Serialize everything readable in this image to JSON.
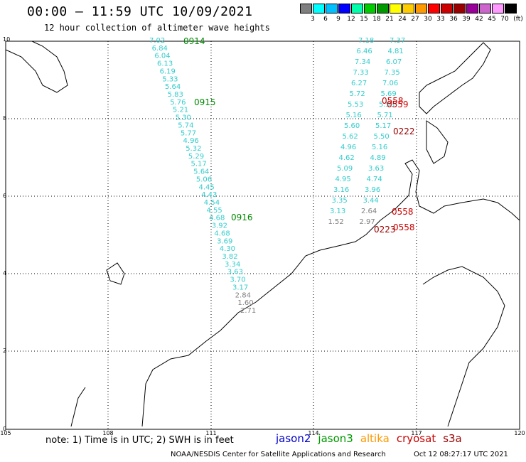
{
  "title": "00:00 – 11:59 UTC 10/09/2021",
  "subtitle": "12 hour collection of altimeter wave heights",
  "legend": {
    "colors": [
      "#7f7f7f",
      "#00ffff",
      "#00bfff",
      "#0000ff",
      "#00ffaa",
      "#00cc00",
      "#009900",
      "#ffff00",
      "#ffcc00",
      "#ff9900",
      "#ff0000",
      "#cc0000",
      "#990000",
      "#990099",
      "#cc66cc",
      "#ff99ff",
      "#000000"
    ],
    "labels": [
      "3",
      "6",
      "9",
      "12",
      "15",
      "18",
      "21",
      "24",
      "27",
      "30",
      "33",
      "36",
      "39",
      "42",
      "45",
      "70"
    ],
    "unit": "(ft)"
  },
  "axes": {
    "lat_labels": [
      "10",
      "8",
      "6",
      "4",
      "2",
      "0"
    ],
    "lon_labels": [
      "105",
      "108",
      "111",
      "114",
      "117",
      "120"
    ]
  },
  "tracks": [
    {
      "name": "track-1",
      "values": [
        {
          "v": "7.02",
          "c": "#33cccc"
        },
        {
          "v": "6.84",
          "c": "#33cccc"
        },
        {
          "v": "6.04",
          "c": "#33cccc"
        },
        {
          "v": "6.13",
          "c": "#33cccc"
        },
        {
          "v": "6.19",
          "c": "#33cccc"
        },
        {
          "v": "5.33",
          "c": "#33cccc"
        },
        {
          "v": "5.64",
          "c": "#33cccc"
        },
        {
          "v": "5.83",
          "c": "#33cccc"
        },
        {
          "v": "5.76",
          "c": "#33cccc"
        },
        {
          "v": "5.21",
          "c": "#33cccc"
        },
        {
          "v": "5.30",
          "c": "#33cccc"
        },
        {
          "v": "5.74",
          "c": "#33cccc"
        },
        {
          "v": "5.77",
          "c": "#33cccc"
        },
        {
          "v": "4.96",
          "c": "#33cccc"
        },
        {
          "v": "5.32",
          "c": "#33cccc"
        },
        {
          "v": "5.29",
          "c": "#33cccc"
        },
        {
          "v": "5.17",
          "c": "#33cccc"
        },
        {
          "v": "5.64",
          "c": "#33cccc"
        },
        {
          "v": "5.06",
          "c": "#33cccc"
        },
        {
          "v": "4.45",
          "c": "#33cccc"
        },
        {
          "v": "4.43",
          "c": "#33cccc"
        },
        {
          "v": "4.54",
          "c": "#33cccc"
        },
        {
          "v": "4.55",
          "c": "#33cccc"
        },
        {
          "v": "4.68",
          "c": "#33cccc"
        },
        {
          "v": "3.92",
          "c": "#33cccc"
        },
        {
          "v": "4.68",
          "c": "#33cccc"
        },
        {
          "v": "3.69",
          "c": "#33cccc"
        },
        {
          "v": "4.30",
          "c": "#33cccc"
        },
        {
          "v": "3.82",
          "c": "#33cccc"
        },
        {
          "v": "3.34",
          "c": "#33cccc"
        },
        {
          "v": "3.63",
          "c": "#33cccc"
        },
        {
          "v": "3.70",
          "c": "#33cccc"
        },
        {
          "v": "3.17",
          "c": "#33cccc"
        },
        {
          "v": "2.84",
          "c": "#808080"
        },
        {
          "v": "1.60",
          "c": "#808080"
        },
        {
          "v": "2.71",
          "c": "#808080"
        }
      ]
    },
    {
      "name": "track-2",
      "values": [
        {
          "v": "7.37",
          "c": "#33cccc"
        },
        {
          "v": "7.18",
          "c": "#33cccc"
        },
        {
          "v": "4.81",
          "c": "#33cccc"
        },
        {
          "v": "6.46",
          "c": "#33cccc"
        },
        {
          "v": "6.07",
          "c": "#33cccc"
        },
        {
          "v": "7.34",
          "c": "#33cccc"
        },
        {
          "v": "7.35",
          "c": "#33cccc"
        },
        {
          "v": "7.33",
          "c": "#33cccc"
        },
        {
          "v": "7.06",
          "c": "#33cccc"
        },
        {
          "v": "6.27",
          "c": "#33cccc"
        },
        {
          "v": "5.69",
          "c": "#33cccc"
        },
        {
          "v": "5.72",
          "c": "#33cccc"
        },
        {
          "v": "5.58",
          "c": "#33cccc"
        },
        {
          "v": "5.53",
          "c": "#33cccc"
        },
        {
          "v": "5.71",
          "c": "#33cccc"
        },
        {
          "v": "5.16",
          "c": "#33cccc"
        },
        {
          "v": "5.17",
          "c": "#33cccc"
        },
        {
          "v": "5.60",
          "c": "#33cccc"
        },
        {
          "v": "5.50",
          "c": "#33cccc"
        },
        {
          "v": "5.62",
          "c": "#33cccc"
        },
        {
          "v": "5.16",
          "c": "#33cccc"
        },
        {
          "v": "4.96",
          "c": "#33cccc"
        },
        {
          "v": "4.89",
          "c": "#33cccc"
        },
        {
          "v": "4.62",
          "c": "#33cccc"
        },
        {
          "v": "3.63",
          "c": "#33cccc"
        },
        {
          "v": "5.09",
          "c": "#33cccc"
        },
        {
          "v": "4.74",
          "c": "#33cccc"
        },
        {
          "v": "4.95",
          "c": "#33cccc"
        },
        {
          "v": "3.96",
          "c": "#33cccc"
        },
        {
          "v": "3.16",
          "c": "#33cccc"
        },
        {
          "v": "3.44",
          "c": "#33cccc"
        },
        {
          "v": "3.35",
          "c": "#33cccc"
        },
        {
          "v": "2.64",
          "c": "#808080"
        },
        {
          "v": "3.13",
          "c": "#33cccc"
        },
        {
          "v": "2.97",
          "c": "#808080"
        },
        {
          "v": "1.52",
          "c": "#808080"
        }
      ]
    }
  ],
  "time_tags": [
    {
      "t": "0914",
      "c": "#008800"
    },
    {
      "t": "0915",
      "c": "#008800"
    },
    {
      "t": "0916",
      "c": "#008800"
    },
    {
      "t": "0558",
      "c": "#cc0000"
    },
    {
      "t": "0559",
      "c": "#cc0000"
    },
    {
      "t": "0222",
      "c": "#990000"
    },
    {
      "t": "0558",
      "c": "#cc0000"
    },
    {
      "t": "0223",
      "c": "#990000"
    },
    {
      "t": "0558",
      "c": "#cc0000"
    }
  ],
  "note": "note: 1) Time is in UTC; 2) SWH is in feet",
  "satellites": [
    {
      "name": "jason2",
      "color": "#0000cc"
    },
    {
      "name": "jason3",
      "color": "#009900"
    },
    {
      "name": "altika",
      "color": "#ff9900"
    },
    {
      "name": "cryosat",
      "color": "#cc0000"
    },
    {
      "name": "s3a",
      "color": "#990000"
    }
  ],
  "credit": "NOAA/NESDIS Center for Satellite Applications and Research",
  "credit_time": "Oct 12 08:27:17 UTC 2021"
}
